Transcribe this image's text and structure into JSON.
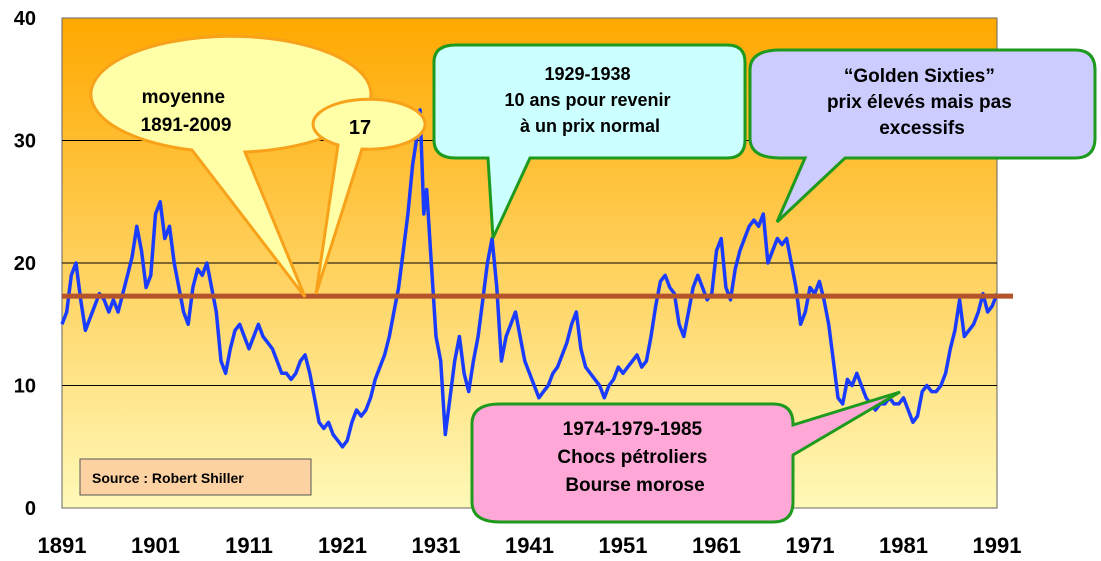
{
  "chart_data": {
    "type": "line",
    "title": "",
    "xlabel": "",
    "ylabel": "",
    "xlim": [
      1891,
      1991
    ],
    "ylim": [
      0,
      40
    ],
    "x_ticks": [
      "1891",
      "1901",
      "1911",
      "1921",
      "1931",
      "1941",
      "1951",
      "1961",
      "1971",
      "1981",
      "1991"
    ],
    "y_ticks": [
      "0",
      "10",
      "20",
      "30",
      "40"
    ],
    "grid": true,
    "background": {
      "top_color": "#ffa800",
      "bottom_color": "#fff9b8"
    },
    "colors": {
      "series": "#1a3cff",
      "mean_line": "#b5532a"
    },
    "mean_line": {
      "value": 17.3
    },
    "series": [
      {
        "values": [
          [
            1891.0,
            15
          ],
          [
            1891.5,
            16
          ],
          [
            1892.0,
            19
          ],
          [
            1892.5,
            20
          ],
          [
            1893.0,
            17
          ],
          [
            1893.5,
            14.5
          ],
          [
            1894.0,
            15.5
          ],
          [
            1894.5,
            16.5
          ],
          [
            1895.0,
            17.5
          ],
          [
            1895.5,
            17
          ],
          [
            1896.0,
            16
          ],
          [
            1896.5,
            17
          ],
          [
            1897.0,
            16
          ],
          [
            1897.5,
            17.5
          ],
          [
            1898.0,
            19
          ],
          [
            1898.5,
            20.5
          ],
          [
            1899.0,
            23
          ],
          [
            1899.5,
            21
          ],
          [
            1900.0,
            18
          ],
          [
            1900.5,
            19
          ],
          [
            1901.0,
            24
          ],
          [
            1901.5,
            25
          ],
          [
            1902.0,
            22
          ],
          [
            1902.5,
            23
          ],
          [
            1903.0,
            20
          ],
          [
            1903.5,
            18
          ],
          [
            1904.0,
            16
          ],
          [
            1904.5,
            15
          ],
          [
            1905.0,
            18
          ],
          [
            1905.5,
            19.5
          ],
          [
            1906.0,
            19
          ],
          [
            1906.5,
            20
          ],
          [
            1907.0,
            18
          ],
          [
            1907.5,
            16
          ],
          [
            1908.0,
            12
          ],
          [
            1908.5,
            11
          ],
          [
            1909.0,
            13
          ],
          [
            1909.5,
            14.5
          ],
          [
            1910.0,
            15
          ],
          [
            1910.5,
            14
          ],
          [
            1911.0,
            13
          ],
          [
            1911.5,
            14
          ],
          [
            1912.0,
            15
          ],
          [
            1912.5,
            14
          ],
          [
            1913.0,
            13.5
          ],
          [
            1913.5,
            13
          ],
          [
            1914.0,
            12
          ],
          [
            1914.5,
            11
          ],
          [
            1915.0,
            11
          ],
          [
            1915.5,
            10.5
          ],
          [
            1916.0,
            11
          ],
          [
            1916.5,
            12
          ],
          [
            1917.0,
            12.5
          ],
          [
            1917.5,
            11
          ],
          [
            1918.0,
            9
          ],
          [
            1918.5,
            7
          ],
          [
            1919.0,
            6.5
          ],
          [
            1919.5,
            7
          ],
          [
            1920.0,
            6
          ],
          [
            1920.5,
            5.5
          ],
          [
            1921.0,
            5
          ],
          [
            1921.5,
            5.5
          ],
          [
            1922.0,
            7
          ],
          [
            1922.5,
            8
          ],
          [
            1923.0,
            7.5
          ],
          [
            1923.5,
            8
          ],
          [
            1924.0,
            9
          ],
          [
            1924.5,
            10.5
          ],
          [
            1925.0,
            11.5
          ],
          [
            1925.5,
            12.5
          ],
          [
            1926.0,
            14
          ],
          [
            1926.5,
            16
          ],
          [
            1927.0,
            18
          ],
          [
            1927.5,
            21
          ],
          [
            1928.0,
            24
          ],
          [
            1928.5,
            28
          ],
          [
            1929.0,
            30.5
          ],
          [
            1929.3,
            32.5
          ],
          [
            1929.7,
            24
          ],
          [
            1930.0,
            26
          ],
          [
            1930.5,
            20
          ],
          [
            1931.0,
            14
          ],
          [
            1931.5,
            12
          ],
          [
            1932.0,
            6
          ],
          [
            1932.5,
            9
          ],
          [
            1933.0,
            12
          ],
          [
            1933.5,
            14
          ],
          [
            1934.0,
            11
          ],
          [
            1934.5,
            9.5
          ],
          [
            1935.0,
            12
          ],
          [
            1935.5,
            14
          ],
          [
            1936.0,
            17
          ],
          [
            1936.5,
            20
          ],
          [
            1937.0,
            22
          ],
          [
            1937.5,
            18
          ],
          [
            1938.0,
            12
          ],
          [
            1938.5,
            14
          ],
          [
            1939.0,
            15
          ],
          [
            1939.5,
            16
          ],
          [
            1940.0,
            14
          ],
          [
            1940.5,
            12
          ],
          [
            1941.0,
            11
          ],
          [
            1941.5,
            10
          ],
          [
            1942.0,
            9
          ],
          [
            1942.5,
            9.5
          ],
          [
            1943.0,
            10
          ],
          [
            1943.5,
            11
          ],
          [
            1944.0,
            11.5
          ],
          [
            1944.5,
            12.5
          ],
          [
            1945.0,
            13.5
          ],
          [
            1945.5,
            15
          ],
          [
            1946.0,
            16
          ],
          [
            1946.5,
            13
          ],
          [
            1947.0,
            11.5
          ],
          [
            1947.5,
            11
          ],
          [
            1948.0,
            10.5
          ],
          [
            1948.5,
            10
          ],
          [
            1949.0,
            9
          ],
          [
            1949.5,
            10
          ],
          [
            1950.0,
            10.5
          ],
          [
            1950.5,
            11.5
          ],
          [
            1951.0,
            11
          ],
          [
            1951.5,
            11.5
          ],
          [
            1952.0,
            12
          ],
          [
            1952.5,
            12.5
          ],
          [
            1953.0,
            11.5
          ],
          [
            1953.5,
            12
          ],
          [
            1954.0,
            14
          ],
          [
            1954.5,
            16.5
          ],
          [
            1955.0,
            18.5
          ],
          [
            1955.5,
            19
          ],
          [
            1956.0,
            18
          ],
          [
            1956.5,
            17.5
          ],
          [
            1957.0,
            15
          ],
          [
            1957.5,
            14
          ],
          [
            1958.0,
            16
          ],
          [
            1958.5,
            18
          ],
          [
            1959.0,
            19
          ],
          [
            1959.5,
            18
          ],
          [
            1960.0,
            17
          ],
          [
            1960.5,
            17.5
          ],
          [
            1961.0,
            21
          ],
          [
            1961.5,
            22
          ],
          [
            1962.0,
            18
          ],
          [
            1962.5,
            17
          ],
          [
            1963.0,
            19.5
          ],
          [
            1963.5,
            21
          ],
          [
            1964.0,
            22
          ],
          [
            1964.5,
            23
          ],
          [
            1965.0,
            23.5
          ],
          [
            1965.5,
            23
          ],
          [
            1966.0,
            24
          ],
          [
            1966.5,
            20
          ],
          [
            1967.0,
            21
          ],
          [
            1967.5,
            22
          ],
          [
            1968.0,
            21.5
          ],
          [
            1968.5,
            22
          ],
          [
            1969.0,
            20
          ],
          [
            1969.5,
            18
          ],
          [
            1970.0,
            15
          ],
          [
            1970.5,
            16
          ],
          [
            1971.0,
            18
          ],
          [
            1971.5,
            17.5
          ],
          [
            1972.0,
            18.5
          ],
          [
            1972.5,
            17
          ],
          [
            1973.0,
            15
          ],
          [
            1973.5,
            12
          ],
          [
            1974.0,
            9
          ],
          [
            1974.5,
            8.5
          ],
          [
            1975.0,
            10.5
          ],
          [
            1975.5,
            10
          ],
          [
            1976.0,
            11
          ],
          [
            1976.5,
            10
          ],
          [
            1977.0,
            9
          ],
          [
            1977.5,
            8.5
          ],
          [
            1978.0,
            8
          ],
          [
            1978.5,
            8.5
          ],
          [
            1979.0,
            8.5
          ],
          [
            1979.5,
            9
          ],
          [
            1980.0,
            8.5
          ],
          [
            1980.5,
            8.5
          ],
          [
            1981.0,
            9
          ],
          [
            1981.5,
            8
          ],
          [
            1982.0,
            7
          ],
          [
            1982.5,
            7.5
          ],
          [
            1983.0,
            9.5
          ],
          [
            1983.5,
            10
          ],
          [
            1984.0,
            9.5
          ],
          [
            1984.5,
            9.5
          ],
          [
            1985.0,
            10
          ],
          [
            1985.5,
            11
          ],
          [
            1986.0,
            13
          ],
          [
            1986.5,
            14.5
          ],
          [
            1987.0,
            17
          ],
          [
            1987.5,
            14
          ],
          [
            1988.0,
            14.5
          ],
          [
            1988.5,
            15
          ],
          [
            1989.0,
            16
          ],
          [
            1989.5,
            17.5
          ],
          [
            1990.0,
            16
          ],
          [
            1990.5,
            16.5
          ],
          [
            1991.0,
            17.5
          ]
        ]
      }
    ]
  },
  "source_box": {
    "label": "Source : Robert Shiller",
    "fill": "#fcd2a2"
  },
  "callouts": {
    "moyenne": {
      "lines": [
        "moyenne",
        "1891-2009"
      ],
      "fill": "#ffffa8",
      "stroke": "#f7a21a"
    },
    "seventeen": {
      "lines": [
        "17"
      ],
      "fill": "#ffffa8",
      "stroke": "#f7a21a"
    },
    "crash": {
      "lines": [
        "1929-1938",
        "10 ans pour revenir",
        "à un prix normal"
      ],
      "fill": "#ccffff",
      "stroke": "#1e9a1e"
    },
    "sixties": {
      "lines": [
        "“Golden Sixties”",
        "prix élevés mais pas",
        "excessifs"
      ],
      "fill": "#ccccff",
      "stroke": "#1e9a1e"
    },
    "oil": {
      "lines": [
        "1974-1979-1985",
        "Chocs pétroliers",
        "Bourse morose"
      ],
      "fill": "#ffa8d8",
      "stroke": "#1e9a1e"
    }
  }
}
